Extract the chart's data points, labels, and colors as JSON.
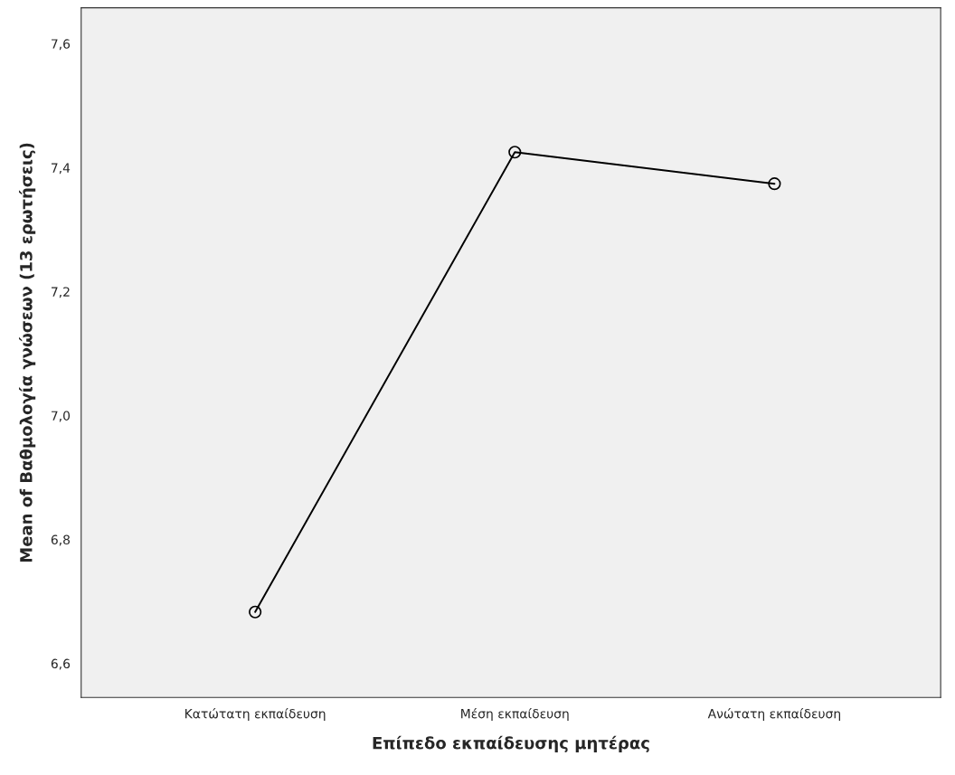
{
  "chart_data": {
    "type": "line",
    "xlabel": "Επίπεδο εκπαίδευσης μητέρας",
    "ylabel": "Mean of Βαθμολογία γνώσεων (13 ερωτήσεις)",
    "categories": [
      "Κατώτατη εκπαίδευση",
      "Μέση εκπαίδευση",
      "Ανώτατη εκπαίδευση"
    ],
    "series": [
      {
        "color": "#000000",
        "values": [
          6.683,
          7.425,
          7.374
        ]
      }
    ],
    "ylim": [
      6.545,
      7.658
    ],
    "yticks": [
      {
        "value": 6.6,
        "label": "6,6"
      },
      {
        "value": 6.8,
        "label": "6,8"
      },
      {
        "value": 7.0,
        "label": "7,0"
      },
      {
        "value": 7.2,
        "label": "7,2"
      },
      {
        "value": 7.4,
        "label": "7,4"
      },
      {
        "value": 7.6,
        "label": "7,6"
      }
    ],
    "marker": "circle",
    "line_style": "solid",
    "grid": false,
    "legend": false
  }
}
